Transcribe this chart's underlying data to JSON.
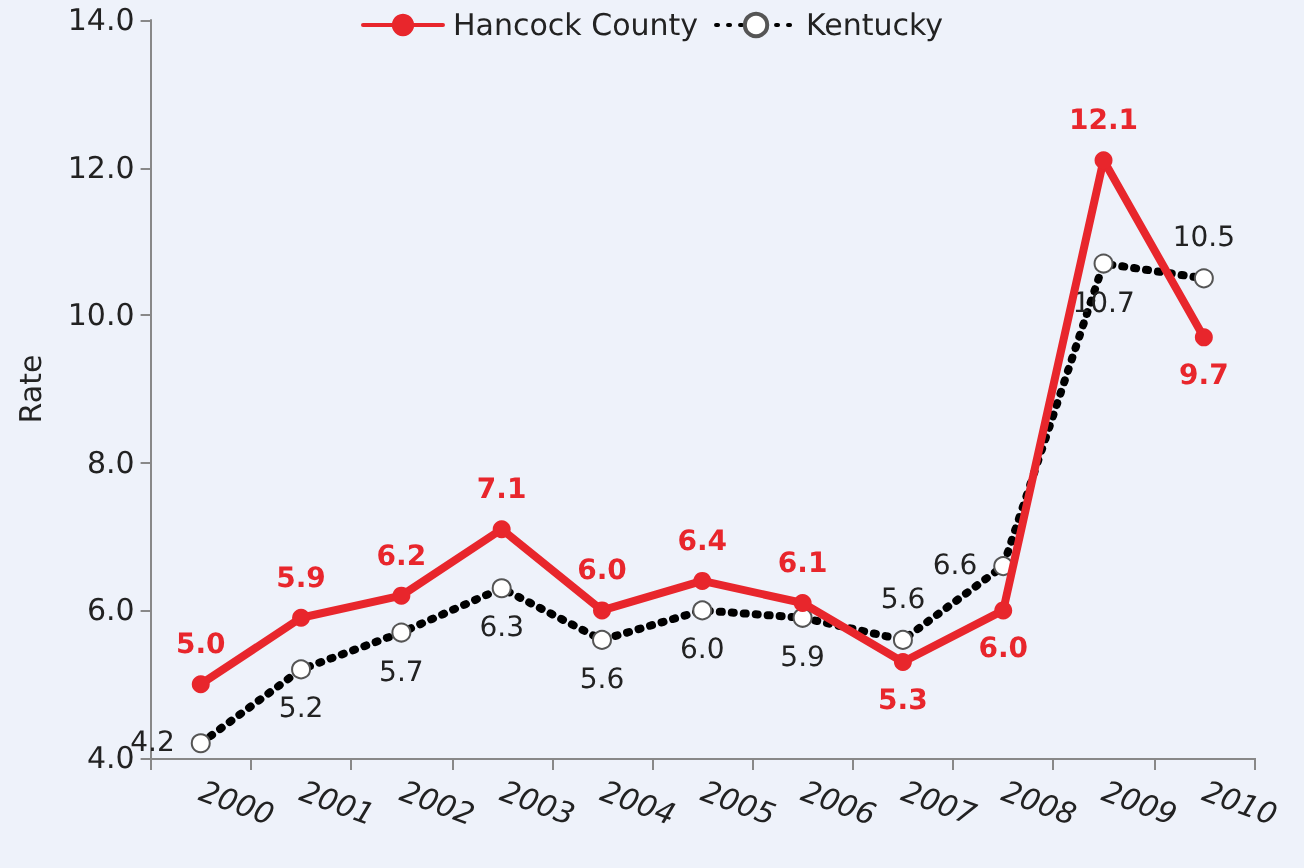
{
  "chart_data": {
    "type": "line",
    "ylabel": "Rate",
    "categories": [
      "2000",
      "2001",
      "2002",
      "2003",
      "2004",
      "2005",
      "2006",
      "2007",
      "2008",
      "2009",
      "2010"
    ],
    "series": [
      {
        "name": "Hancock County",
        "color": "#e8262c",
        "line_style": "solid",
        "values": [
          5.0,
          5.9,
          6.2,
          7.1,
          6.0,
          6.4,
          6.1,
          5.3,
          6.0,
          12.1,
          9.7
        ],
        "value_labels": [
          "5.0",
          "5.9",
          "6.2",
          "7.1",
          "6.0",
          "6.4",
          "6.1",
          "5.3",
          "6.0",
          "12.1",
          "9.7"
        ]
      },
      {
        "name": "Kentucky",
        "color": "#000000",
        "line_style": "dotted",
        "values": [
          4.2,
          5.2,
          5.7,
          6.3,
          5.6,
          6.0,
          5.9,
          5.6,
          6.6,
          10.7,
          10.5
        ],
        "value_labels": [
          "4.2",
          "5.2",
          "5.7",
          "6.3",
          "5.6",
          "6.0",
          "5.9",
          "5.6",
          "6.6",
          "10.7",
          "10.5"
        ]
      }
    ],
    "ylim": [
      4,
      14
    ],
    "yticks": [
      {
        "value": 4,
        "label": "4.0"
      },
      {
        "value": 6,
        "label": "6.0"
      },
      {
        "value": 8,
        "label": "8.0"
      },
      {
        "value": 10,
        "label": "10.0"
      },
      {
        "value": 12,
        "label": "12.0"
      },
      {
        "value": 14,
        "label": "14.0"
      }
    ],
    "grid": false,
    "legend": "top",
    "marker": "circle"
  }
}
